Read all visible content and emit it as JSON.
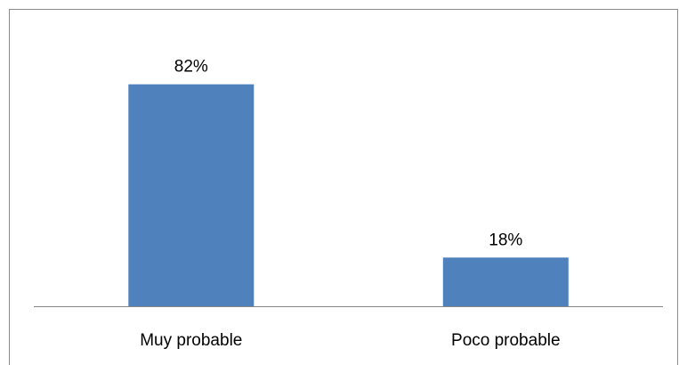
{
  "chart_data": {
    "type": "bar",
    "categories": [
      "Muy probable",
      "Poco probable"
    ],
    "values": [
      82,
      18
    ],
    "value_labels": [
      "82%",
      "18%"
    ],
    "ylim": [
      0,
      100
    ],
    "grid": false,
    "legend": "none",
    "bar_color": "#4F81BD",
    "axis_color": "#868686"
  }
}
